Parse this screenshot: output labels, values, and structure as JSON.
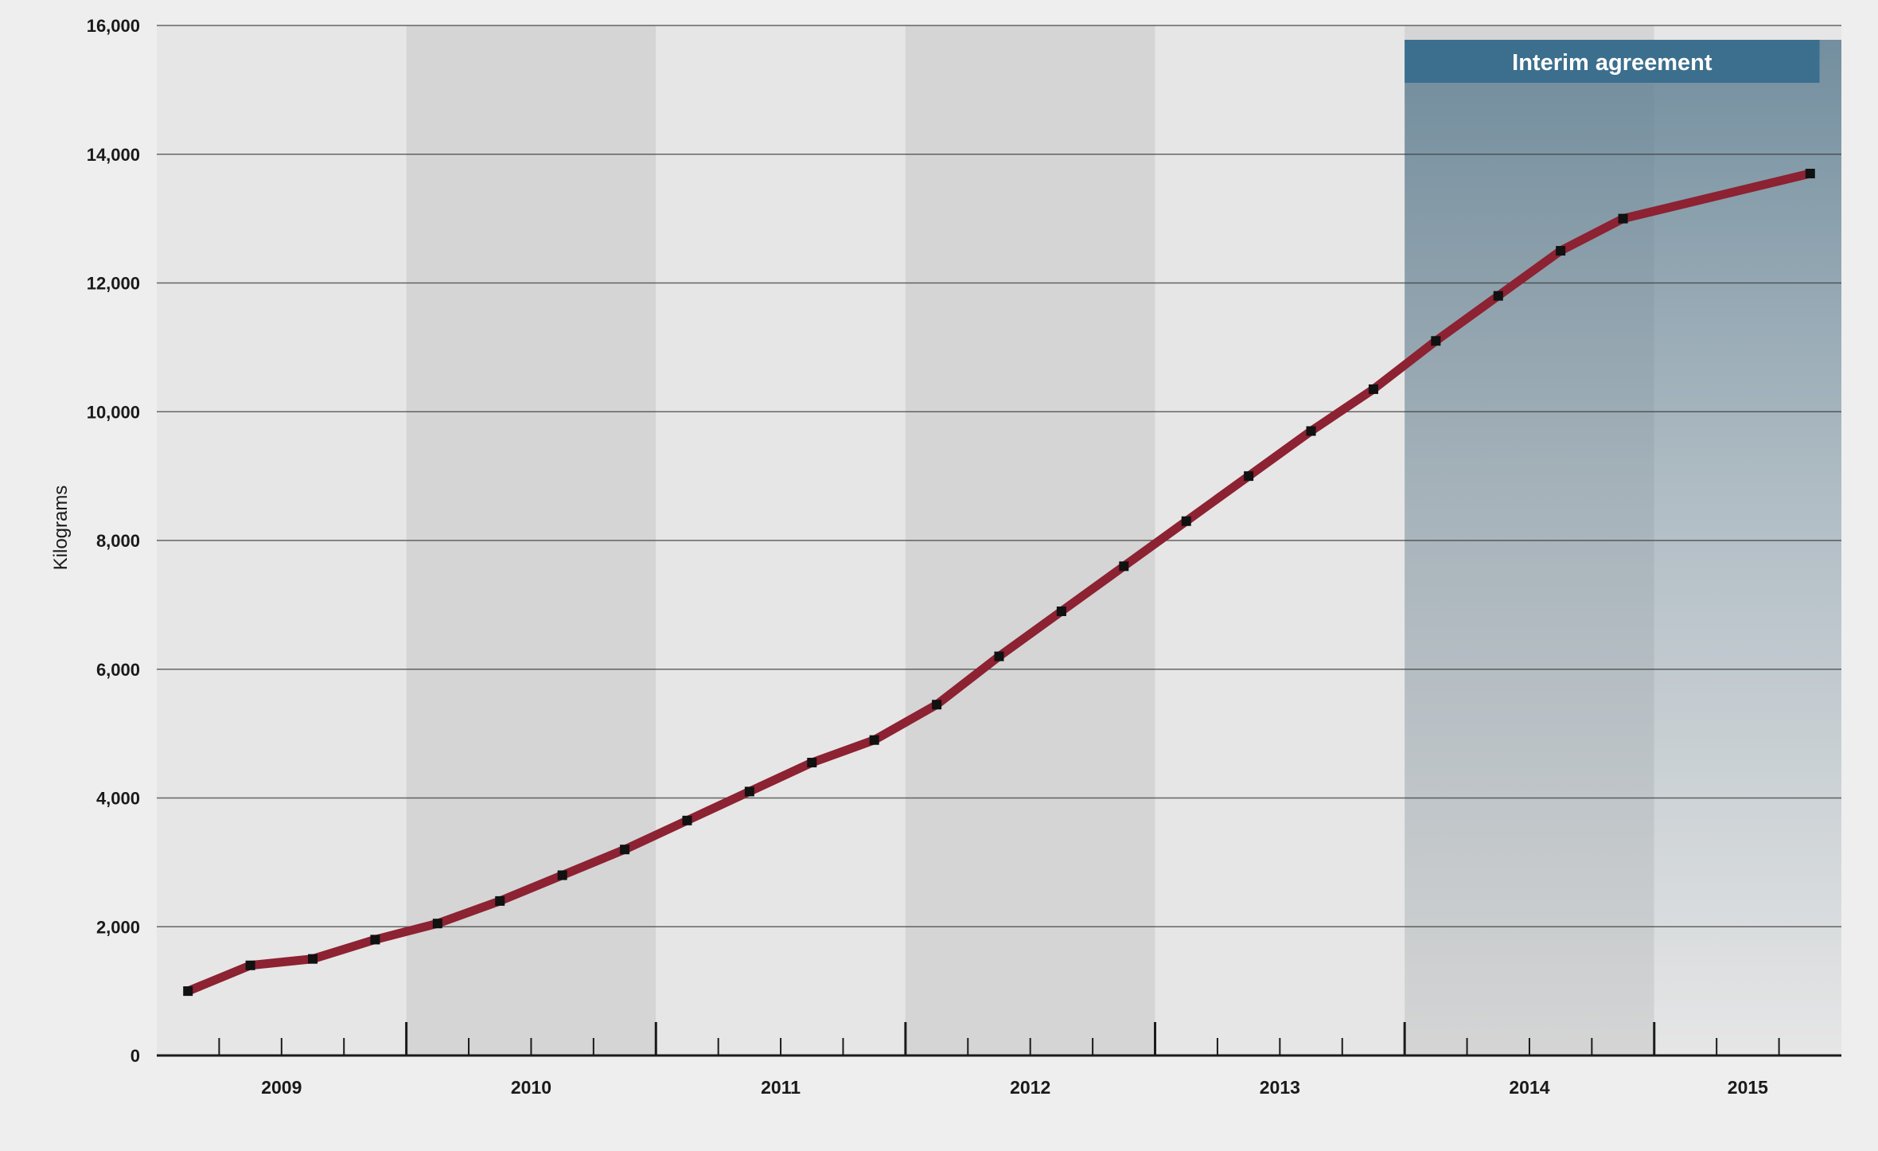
{
  "chart_data": {
    "type": "line",
    "title": "",
    "xlabel": "",
    "ylabel": "Kilograms",
    "ylim": [
      0,
      16000
    ],
    "xlim": [
      2008.5,
      2015.25
    ],
    "y_ticks": [
      0,
      2000,
      4000,
      6000,
      8000,
      10000,
      12000,
      14000,
      16000
    ],
    "y_tick_labels": [
      "0",
      "2,000",
      "4,000",
      "6,000",
      "8,000",
      "10,000",
      "12,000",
      "14,000",
      "16,000"
    ],
    "years": [
      {
        "label": "2009",
        "start": 2008.5,
        "end": 2009.5,
        "shaded": false
      },
      {
        "label": "2010",
        "start": 2009.5,
        "end": 2010.5,
        "shaded": true
      },
      {
        "label": "2011",
        "start": 2010.5,
        "end": 2011.5,
        "shaded": false
      },
      {
        "label": "2012",
        "start": 2011.5,
        "end": 2012.5,
        "shaded": true
      },
      {
        "label": "2013",
        "start": 2012.5,
        "end": 2013.5,
        "shaded": false
      },
      {
        "label": "2014",
        "start": 2013.5,
        "end": 2014.5,
        "shaded": true
      },
      {
        "label": "2015",
        "start": 2014.5,
        "end": 2015.25,
        "shaded": false
      }
    ],
    "highlight": {
      "label": "Interim agreement",
      "start": 2013.5,
      "end": 2015.25
    },
    "grid": true,
    "series": [
      {
        "name": "",
        "x": [
          2008.625,
          2008.875,
          2009.125,
          2009.375,
          2009.625,
          2009.875,
          2010.125,
          2010.375,
          2010.625,
          2010.875,
          2011.125,
          2011.375,
          2011.625,
          2011.875,
          2012.125,
          2012.375,
          2012.625,
          2012.875,
          2013.125,
          2013.375,
          2013.625,
          2013.875,
          2014.125,
          2014.375,
          2015.125
        ],
        "y": [
          1000,
          1400,
          1500,
          1800,
          2050,
          2400,
          2800,
          3200,
          3650,
          4100,
          4550,
          4900,
          5450,
          6200,
          6900,
          7600,
          8300,
          9000,
          9700,
          10350,
          11100,
          11800,
          12500,
          13000,
          13700
        ]
      }
    ],
    "colors": {
      "line": "#8c2232",
      "marker": "#111111",
      "band_light": "#e6e6e6",
      "band_dark": "#d5d5d5",
      "highlight": "#5f7f92",
      "banner": "#3c6f8e",
      "grid": "#3a3a3a"
    }
  }
}
